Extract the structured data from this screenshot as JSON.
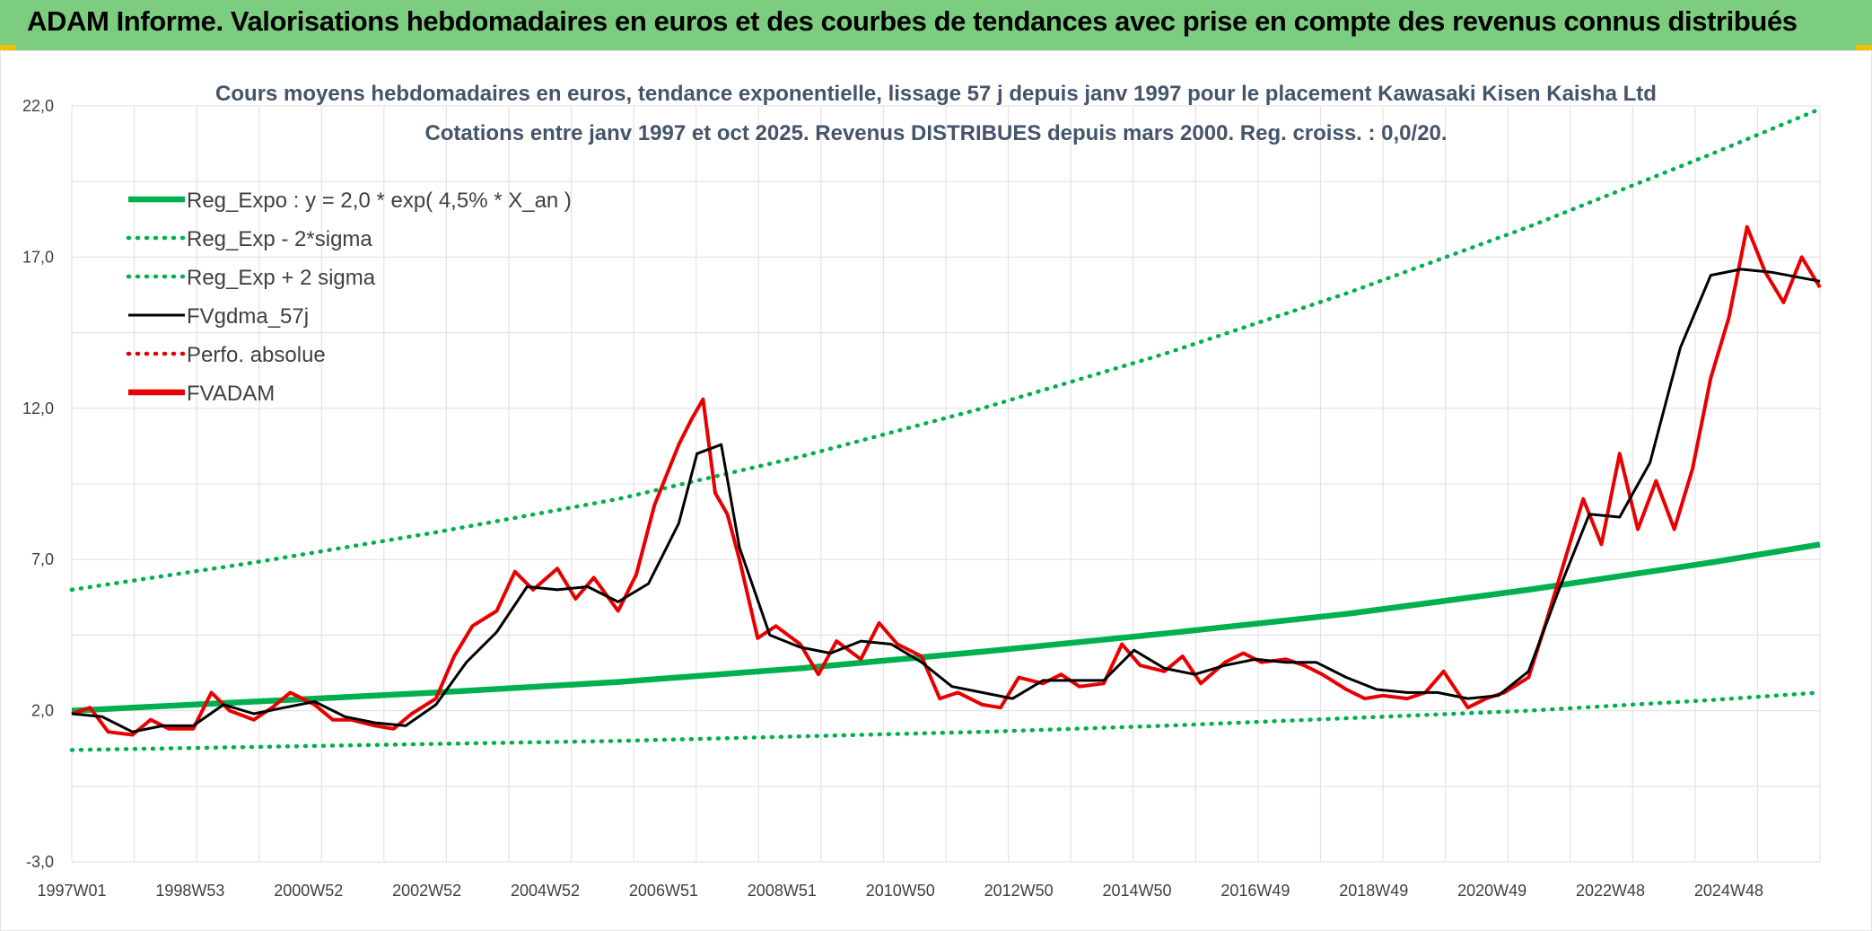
{
  "header": {
    "title": "ADAM Informe. Valorisations hebdomadaires en euros et des courbes de tendances avec prise en compte des revenus connus distribués",
    "background": "#7dcd80",
    "corner_accent": "#f0c000"
  },
  "chart_data": {
    "type": "line",
    "title": "Cours moyens hebdomadaires en euros, tendance exponentielle, lissage 57 j depuis janv 1997 pour le placement Kawasaki Kisen Kaisha Ltd",
    "subtitle": "Cotations entre janv 1997 et oct 2025. Revenus DISTRIBUES depuis mars 2000. Reg. croiss. : 0,0/20.",
    "ylim": [
      -3,
      22
    ],
    "y_ticks": [
      "22,0",
      "17,0",
      "12,0",
      "7,0",
      "2,0",
      "-3,0"
    ],
    "y_tick_values": [
      22,
      17,
      12,
      7,
      2,
      -3
    ],
    "x_ticks": [
      "1997W01",
      "1998W53",
      "2000W52",
      "2002W52",
      "2004W52",
      "2006W51",
      "2008W51",
      "2010W50",
      "2012W50",
      "2014W50",
      "2016W49",
      "2018W49",
      "2020W49",
      "2022W48",
      "2024W48"
    ],
    "x_range_years": [
      1997.0,
      2025.8
    ],
    "grid": true,
    "legend_position": "top-left",
    "series": [
      {
        "name": "Reg_Expo : y = 2,0 * exp( 4,5% *  X_an )",
        "color": "#00b050",
        "style": "solid-thick",
        "x": [
          1997.0,
          2000.0,
          2003.0,
          2006.0,
          2009.0,
          2012.0,
          2015.0,
          2018.0,
          2021.0,
          2024.0,
          2025.8
        ],
        "y": [
          2.0,
          2.3,
          2.6,
          2.95,
          3.4,
          3.95,
          4.55,
          5.2,
          6.0,
          6.9,
          7.5
        ]
      },
      {
        "name": "Reg_Exp - 2*sigma",
        "color": "#00b050",
        "style": "dotted",
        "x": [
          1997.0,
          2000.0,
          2003.0,
          2006.0,
          2009.0,
          2012.0,
          2015.0,
          2018.0,
          2021.0,
          2024.0,
          2025.8
        ],
        "y": [
          0.7,
          0.8,
          0.9,
          1.0,
          1.15,
          1.3,
          1.5,
          1.75,
          2.0,
          2.35,
          2.6
        ]
      },
      {
        "name": "Reg_Exp + 2 sigma",
        "color": "#00b050",
        "style": "dotted",
        "x": [
          1997.0,
          2000.0,
          2003.0,
          2006.0,
          2009.0,
          2012.0,
          2015.0,
          2018.0,
          2021.0,
          2024.0,
          2025.8
        ],
        "y": [
          6.0,
          6.9,
          7.9,
          9.0,
          10.4,
          12.0,
          13.8,
          15.8,
          18.0,
          20.4,
          21.9
        ]
      },
      {
        "name": "FVgdma_57j",
        "color": "#000000",
        "style": "solid",
        "x": [
          1997.0,
          1997.5,
          1998.0,
          1998.5,
          1999.0,
          1999.5,
          2000.0,
          2000.5,
          2001.0,
          2001.5,
          2002.0,
          2002.5,
          2003.0,
          2003.5,
          2004.0,
          2004.5,
          2005.0,
          2005.5,
          2006.0,
          2006.5,
          2007.0,
          2007.3,
          2007.7,
          2008.0,
          2008.5,
          2009.0,
          2009.5,
          2010.0,
          2010.5,
          2011.0,
          2011.5,
          2012.0,
          2012.5,
          2013.0,
          2013.5,
          2014.0,
          2014.5,
          2015.0,
          2015.5,
          2016.0,
          2016.5,
          2017.0,
          2017.5,
          2018.0,
          2018.5,
          2019.0,
          2019.5,
          2020.0,
          2020.5,
          2021.0,
          2021.5,
          2022.0,
          2022.5,
          2023.0,
          2023.5,
          2024.0,
          2024.5,
          2025.0,
          2025.8
        ],
        "y": [
          1.9,
          1.8,
          1.3,
          1.5,
          1.5,
          2.2,
          1.9,
          2.1,
          2.3,
          1.8,
          1.6,
          1.5,
          2.2,
          3.6,
          4.6,
          6.1,
          6.0,
          6.1,
          5.6,
          6.2,
          8.2,
          10.5,
          10.8,
          7.4,
          4.5,
          4.1,
          3.9,
          4.3,
          4.2,
          3.6,
          2.8,
          2.6,
          2.4,
          3.0,
          3.0,
          3.0,
          4.0,
          3.4,
          3.2,
          3.5,
          3.7,
          3.6,
          3.6,
          3.1,
          2.7,
          2.6,
          2.6,
          2.4,
          2.5,
          3.3,
          6.0,
          8.5,
          8.4,
          10.2,
          14.0,
          16.4,
          16.6,
          16.5,
          16.2
        ]
      },
      {
        "name": "Perfo. absolue",
        "color": "#e00000",
        "style": "dotted",
        "x": [],
        "y": []
      },
      {
        "name": "FVADAM",
        "color": "#e80000",
        "style": "solid-thick",
        "x": [
          1997.0,
          1997.3,
          1997.6,
          1998.0,
          1998.3,
          1998.6,
          1999.0,
          1999.3,
          1999.6,
          2000.0,
          2000.3,
          2000.6,
          2001.0,
          2001.3,
          2001.6,
          2002.0,
          2002.3,
          2002.6,
          2003.0,
          2003.3,
          2003.6,
          2004.0,
          2004.3,
          2004.6,
          2005.0,
          2005.3,
          2005.6,
          2006.0,
          2006.3,
          2006.6,
          2007.0,
          2007.2,
          2007.4,
          2007.6,
          2007.8,
          2008.0,
          2008.3,
          2008.6,
          2009.0,
          2009.3,
          2009.6,
          2010.0,
          2010.3,
          2010.6,
          2011.0,
          2011.3,
          2011.6,
          2012.0,
          2012.3,
          2012.6,
          2013.0,
          2013.3,
          2013.6,
          2014.0,
          2014.3,
          2014.6,
          2015.0,
          2015.3,
          2015.6,
          2016.0,
          2016.3,
          2016.6,
          2017.0,
          2017.3,
          2017.6,
          2018.0,
          2018.3,
          2018.6,
          2019.0,
          2019.3,
          2019.6,
          2020.0,
          2020.3,
          2020.6,
          2021.0,
          2021.3,
          2021.6,
          2021.9,
          2022.2,
          2022.5,
          2022.8,
          2023.1,
          2023.4,
          2023.7,
          2024.0,
          2024.3,
          2024.6,
          2024.9,
          2025.2,
          2025.5,
          2025.8
        ],
        "y": [
          1.9,
          2.1,
          1.3,
          1.2,
          1.7,
          1.4,
          1.4,
          2.6,
          2.0,
          1.7,
          2.1,
          2.6,
          2.2,
          1.7,
          1.7,
          1.5,
          1.4,
          1.9,
          2.4,
          3.8,
          4.8,
          5.3,
          6.6,
          6.0,
          6.7,
          5.7,
          6.4,
          5.3,
          6.5,
          8.8,
          10.8,
          11.6,
          12.3,
          9.2,
          8.5,
          7.0,
          4.4,
          4.8,
          4.2,
          3.2,
          4.3,
          3.7,
          4.9,
          4.2,
          3.8,
          2.4,
          2.6,
          2.2,
          2.1,
          3.1,
          2.9,
          3.2,
          2.8,
          2.9,
          4.2,
          3.5,
          3.3,
          3.8,
          2.9,
          3.6,
          3.9,
          3.6,
          3.7,
          3.5,
          3.2,
          2.7,
          2.4,
          2.5,
          2.4,
          2.6,
          3.3,
          2.1,
          2.4,
          2.6,
          3.1,
          5.0,
          7.0,
          9.0,
          7.5,
          10.5,
          8.0,
          9.6,
          8.0,
          10.0,
          13.0,
          15.0,
          18.0,
          16.5,
          15.5,
          17.0,
          16.0
        ]
      }
    ]
  }
}
